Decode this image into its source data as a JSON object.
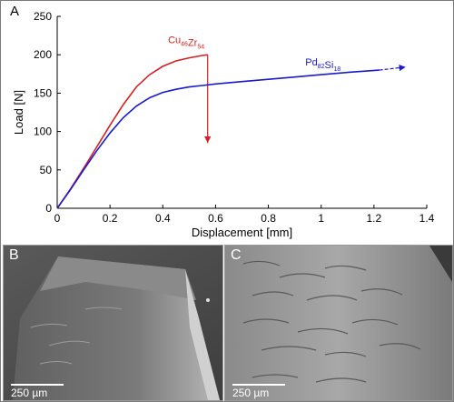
{
  "chart_data": {
    "type": "line",
    "panel_label": "A",
    "xlabel": "Displacement [mm]",
    "ylabel": "Load [N]",
    "xlim": [
      0,
      1.4
    ],
    "ylim": [
      0,
      250
    ],
    "x_ticks": [
      0,
      0.2,
      0.4,
      0.6,
      0.8,
      1,
      1.2,
      1.4
    ],
    "x_tick_labels": [
      "0",
      "0.2",
      "0.4",
      "0.6",
      "0.8",
      "1",
      "1.2",
      "1.4"
    ],
    "y_ticks": [
      0,
      50,
      100,
      150,
      200,
      250
    ],
    "y_tick_labels": [
      "0",
      "50",
      "100",
      "150",
      "200",
      "250"
    ],
    "grid": false,
    "series": [
      {
        "name": "Cu46Zr54",
        "label_parts": [
          [
            "Cu",
            "46"
          ],
          [
            "Zr",
            "54"
          ]
        ],
        "color": "#d42020",
        "x": [
          0,
          0.05,
          0.1,
          0.15,
          0.2,
          0.25,
          0.3,
          0.35,
          0.4,
          0.45,
          0.5,
          0.55,
          0.57
        ],
        "y": [
          0,
          25,
          52,
          80,
          108,
          135,
          158,
          174,
          185,
          192,
          196,
          199,
          200
        ],
        "drop": {
          "x": 0.57,
          "y_from": 200,
          "y_to": 85
        }
      },
      {
        "name": "Pd82Si18",
        "label_parts": [
          [
            "Pd",
            "82"
          ],
          [
            "Si",
            "18"
          ]
        ],
        "color": "#1a1ad0",
        "x": [
          0,
          0.05,
          0.1,
          0.15,
          0.2,
          0.25,
          0.3,
          0.35,
          0.4,
          0.45,
          0.5,
          0.55,
          0.6,
          0.7,
          0.8,
          0.9,
          1.0,
          1.1,
          1.22
        ],
        "y": [
          0,
          24,
          50,
          75,
          98,
          118,
          133,
          144,
          151,
          155,
          158,
          160,
          162,
          165,
          168,
          171,
          174,
          177,
          180
        ],
        "arrow_to": {
          "x": 1.32,
          "y": 184
        }
      }
    ]
  },
  "micrographs": [
    {
      "label": "B",
      "scale_text": "250 µm"
    },
    {
      "label": "C",
      "scale_text": "250 µm"
    }
  ]
}
